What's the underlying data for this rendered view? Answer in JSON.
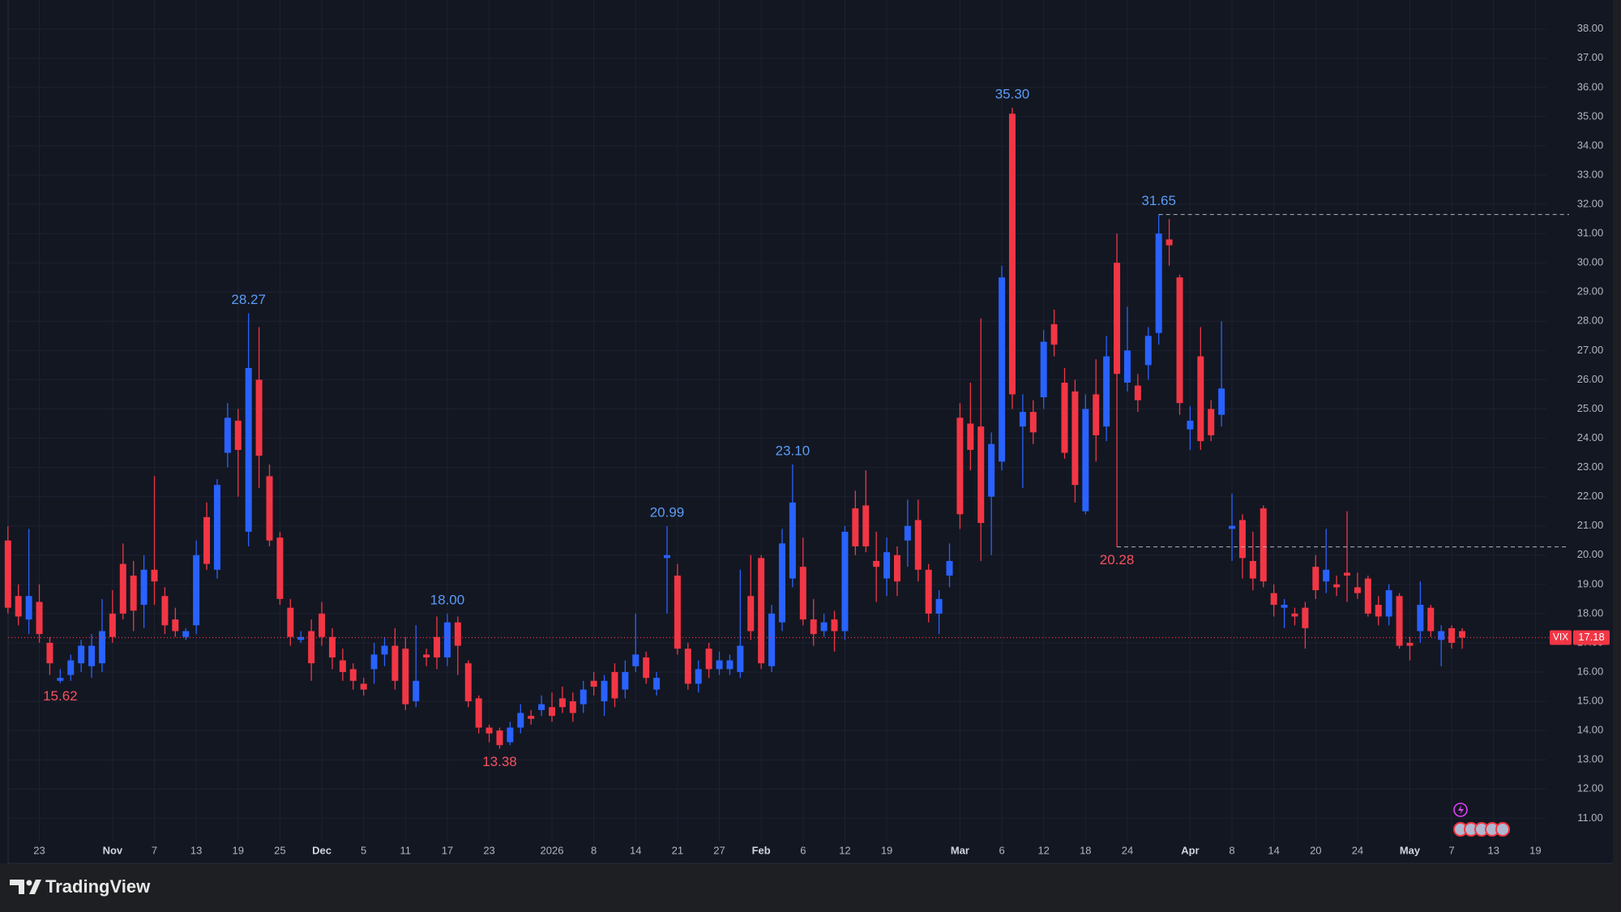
{
  "chart_data": {
    "type": "candlestick",
    "symbol": "VIX",
    "price_label": "17.18",
    "up_color": "#2962ff",
    "down_color": "#f23645",
    "high_label_color": "#5b9cf6",
    "low_label_color": "#f7525f",
    "grid": true,
    "ylim": [
      10.26,
      38.99
    ],
    "yticks": [
      {
        "value": 11,
        "label": "11.00"
      },
      {
        "value": 12,
        "label": "12.00"
      },
      {
        "value": 13,
        "label": "13.00"
      },
      {
        "value": 14,
        "label": "14.00"
      },
      {
        "value": 15,
        "label": "15.00"
      },
      {
        "value": 16,
        "label": "16.00"
      },
      {
        "value": 17,
        "label": "17.00"
      },
      {
        "value": 18,
        "label": "18.00"
      },
      {
        "value": 19,
        "label": "19.00"
      },
      {
        "value": 20,
        "label": "20.00"
      },
      {
        "value": 21,
        "label": "21.00"
      },
      {
        "value": 22,
        "label": "22.00"
      },
      {
        "value": 23,
        "label": "23.00"
      },
      {
        "value": 24,
        "label": "24.00"
      },
      {
        "value": 25,
        "label": "25.00"
      },
      {
        "value": 26,
        "label": "26.00"
      },
      {
        "value": 27,
        "label": "27.00"
      },
      {
        "value": 28,
        "label": "28.00"
      },
      {
        "value": 29,
        "label": "29.00"
      },
      {
        "value": 30,
        "label": "30.00"
      },
      {
        "value": 31,
        "label": "31.00"
      },
      {
        "value": 32,
        "label": "32.00"
      },
      {
        "value": 33,
        "label": "33.00"
      },
      {
        "value": 34,
        "label": "34.00"
      },
      {
        "value": 35,
        "label": "35.00"
      },
      {
        "value": 36,
        "label": "36.00"
      },
      {
        "value": 37,
        "label": "37.00"
      },
      {
        "value": 38,
        "label": "38.00"
      }
    ],
    "categories": [
      null,
      null,
      null,
      "23",
      null,
      null,
      null,
      null,
      null,
      null,
      "Nov",
      null,
      null,
      null,
      "7",
      null,
      null,
      null,
      "13",
      null,
      null,
      null,
      "19",
      null,
      null,
      null,
      "25",
      null,
      null,
      null,
      "Dec",
      null,
      null,
      null,
      "5",
      null,
      null,
      null,
      "11",
      null,
      null,
      null,
      "17",
      null,
      null,
      null,
      "23",
      null,
      null,
      null,
      null,
      null,
      "2026",
      null,
      null,
      null,
      "8",
      null,
      null,
      null,
      "14",
      null,
      null,
      null,
      "21",
      null,
      null,
      null,
      "27",
      null,
      null,
      null,
      "Feb",
      null,
      null,
      null,
      "6",
      null,
      null,
      null,
      "12",
      null,
      null,
      null,
      "19",
      null,
      null,
      null,
      null,
      null,
      null,
      "Mar",
      null,
      null,
      null,
      "6",
      null,
      null,
      null,
      "12",
      null,
      null,
      null,
      "18",
      null,
      null,
      null,
      "24",
      null,
      null,
      null,
      null,
      null,
      "Apr",
      null,
      null,
      null,
      "8",
      null,
      null,
      null,
      "14",
      null,
      null,
      null,
      "20",
      null,
      null,
      null,
      "24",
      null,
      null,
      null,
      null,
      "May",
      null,
      null,
      null,
      "7",
      null,
      null,
      null,
      "13",
      null,
      null,
      null,
      "19",
      null
    ],
    "open": [
      20.5,
      18.6,
      17.8,
      18.4,
      17.0,
      15.7,
      15.9,
      16.3,
      16.2,
      16.3,
      18.0,
      19.7,
      19.3,
      18.3,
      19.5,
      18.6,
      17.8,
      17.2,
      17.6,
      21.3,
      19.5,
      23.5,
      24.6,
      20.8,
      26.0,
      22.7,
      20.6,
      18.2,
      17.1,
      17.4,
      18.0,
      17.2,
      16.4,
      16.1,
      15.6,
      16.1,
      16.6,
      16.9,
      16.8,
      15.0,
      16.6,
      17.2,
      16.5,
      17.7,
      16.3,
      15.1,
      14.1,
      14.0,
      13.6,
      14.1,
      14.5,
      14.7,
      14.8,
      15.1,
      15.0,
      14.9,
      15.7,
      15.0,
      16.0,
      15.4,
      16.2,
      16.5,
      15.4,
      19.9,
      19.3,
      16.8,
      15.6,
      16.8,
      16.1,
      16.1,
      16.0,
      18.6,
      19.9,
      16.2,
      17.7,
      19.2,
      19.6,
      17.8,
      17.4,
      17.8,
      17.4,
      21.6,
      21.7,
      19.8,
      19.2,
      20.0,
      20.5,
      21.2,
      19.5,
      18.0,
      19.3,
      24.7,
      24.5,
      24.4,
      22.0,
      23.2,
      35.1,
      24.4,
      24.9,
      25.4,
      27.9,
      25.9,
      25.6,
      21.5,
      25.5,
      24.4,
      30.0,
      25.9,
      25.8,
      26.5,
      27.6,
      30.8,
      29.5,
      24.3,
      26.8,
      25.0,
      24.8,
      20.9,
      21.2,
      19.8,
      21.6,
      18.7,
      18.2,
      18.0,
      18.2,
      19.6,
      19.1,
      19.0,
      19.4,
      18.9,
      19.2,
      18.3,
      17.9,
      18.6,
      17.0,
      17.4,
      18.2,
      17.1,
      17.5,
      17.4,
      null,
      null,
      null,
      null,
      null,
      null,
      null,
      null
    ],
    "high": [
      21.0,
      19.0,
      20.9,
      19.0,
      17.2,
      16.1,
      16.6,
      17.1,
      17.3,
      18.5,
      18.8,
      20.4,
      19.8,
      20.0,
      22.7,
      18.9,
      18.2,
      17.5,
      20.5,
      21.8,
      22.6,
      25.2,
      25.0,
      28.27,
      27.8,
      23.1,
      20.8,
      18.5,
      17.4,
      17.8,
      18.4,
      17.5,
      16.8,
      16.3,
      15.8,
      17.0,
      17.2,
      17.5,
      17.2,
      17.6,
      16.8,
      17.9,
      18.0,
      17.9,
      16.4,
      15.2,
      14.2,
      14.1,
      14.3,
      14.9,
      14.7,
      15.2,
      15.3,
      15.5,
      15.3,
      15.7,
      16.0,
      15.9,
      16.3,
      16.4,
      18.0,
      16.7,
      16.0,
      20.99,
      19.7,
      17.0,
      16.4,
      17.0,
      16.7,
      16.6,
      19.5,
      20.0,
      20.0,
      18.3,
      20.9,
      23.1,
      20.6,
      18.5,
      18.0,
      18.1,
      21.0,
      22.2,
      22.9,
      20.8,
      20.6,
      20.3,
      21.9,
      21.9,
      19.7,
      18.8,
      20.4,
      25.2,
      25.9,
      28.1,
      24.2,
      29.9,
      35.3,
      25.5,
      25.3,
      27.7,
      28.4,
      26.4,
      26.0,
      25.5,
      26.7,
      27.5,
      31.0,
      28.5,
      26.2,
      27.8,
      31.65,
      31.5,
      29.6,
      25.1,
      27.8,
      25.3,
      28.0,
      22.1,
      21.4,
      20.8,
      21.7,
      19.0,
      18.5,
      18.2,
      18.4,
      20.0,
      20.9,
      19.3,
      21.5,
      19.4,
      19.3,
      18.6,
      19.0,
      18.7,
      17.2,
      19.1,
      18.3,
      17.6,
      17.6,
      17.5,
      null,
      null,
      null,
      null,
      null,
      null,
      null,
      null
    ],
    "low": [
      18.0,
      17.6,
      17.3,
      17.0,
      15.9,
      15.62,
      15.7,
      16.0,
      15.8,
      16.0,
      17.0,
      17.8,
      17.4,
      17.5,
      18.3,
      17.3,
      17.2,
      17.1,
      17.3,
      19.5,
      19.2,
      23.0,
      22.0,
      20.3,
      22.3,
      20.3,
      18.3,
      16.9,
      17.0,
      15.7,
      16.9,
      16.1,
      15.7,
      15.4,
      15.2,
      15.6,
      16.2,
      15.4,
      14.7,
      14.8,
      16.2,
      16.1,
      16.2,
      15.9,
      14.8,
      13.9,
      13.6,
      13.38,
      13.5,
      13.9,
      14.2,
      14.5,
      14.3,
      14.6,
      14.3,
      14.6,
      15.2,
      14.5,
      14.8,
      15.1,
      16.0,
      15.6,
      15.2,
      18.0,
      16.6,
      15.4,
      15.3,
      15.8,
      15.9,
      15.9,
      15.8,
      17.1,
      16.1,
      16.0,
      17.4,
      18.9,
      17.6,
      16.9,
      17.2,
      16.7,
      17.1,
      20.0,
      20.1,
      18.4,
      18.6,
      18.6,
      19.6,
      19.1,
      17.7,
      17.3,
      18.9,
      20.9,
      22.9,
      19.8,
      20.0,
      22.9,
      25.0,
      22.3,
      23.8,
      25.0,
      26.8,
      23.3,
      21.8,
      21.4,
      23.2,
      23.9,
      20.28,
      25.6,
      24.9,
      26.0,
      27.2,
      29.9,
      24.8,
      23.6,
      23.6,
      23.9,
      24.4,
      19.8,
      19.2,
      18.8,
      18.9,
      17.9,
      17.5,
      17.6,
      16.8,
      18.5,
      18.7,
      18.6,
      18.4,
      18.5,
      17.9,
      17.6,
      17.6,
      16.8,
      16.4,
      17.0,
      17.2,
      16.2,
      16.8,
      16.8,
      null,
      null,
      null,
      null,
      null,
      null,
      null,
      null
    ],
    "close": [
      18.2,
      17.9,
      18.6,
      17.3,
      16.3,
      15.8,
      16.4,
      16.9,
      16.9,
      17.4,
      17.2,
      18.0,
      18.1,
      19.5,
      19.1,
      17.6,
      17.4,
      17.4,
      20.0,
      19.7,
      22.4,
      24.7,
      23.6,
      26.4,
      23.4,
      20.5,
      18.5,
      17.2,
      17.2,
      16.3,
      17.2,
      16.5,
      16.0,
      15.7,
      15.4,
      16.6,
      16.9,
      15.7,
      14.9,
      15.7,
      16.5,
      16.5,
      17.7,
      16.9,
      15.0,
      14.1,
      13.9,
      13.5,
      14.1,
      14.6,
      14.4,
      14.9,
      14.5,
      14.8,
      14.6,
      15.4,
      15.5,
      15.7,
      15.1,
      16.0,
      16.6,
      15.8,
      15.8,
      20.0,
      16.8,
      15.6,
      16.1,
      16.1,
      16.4,
      16.4,
      16.9,
      17.4,
      16.3,
      18.0,
      20.4,
      21.8,
      17.8,
      17.3,
      17.7,
      17.4,
      20.8,
      20.3,
      20.3,
      19.6,
      20.1,
      19.1,
      21.0,
      19.5,
      18.0,
      18.5,
      19.8,
      21.4,
      23.6,
      21.1,
      23.8,
      29.5,
      25.5,
      24.9,
      24.2,
      27.3,
      27.2,
      23.5,
      22.4,
      25.0,
      24.1,
      26.8,
      26.2,
      27.0,
      25.3,
      27.5,
      31.0,
      30.6,
      25.2,
      24.6,
      23.9,
      24.1,
      25.7,
      21.0,
      19.9,
      19.2,
      19.1,
      18.3,
      18.3,
      17.9,
      17.5,
      18.8,
      19.5,
      18.9,
      19.3,
      18.7,
      18.0,
      17.9,
      18.8,
      16.9,
      16.9,
      18.3,
      17.4,
      17.4,
      17.0,
      17.18,
      null,
      null,
      null,
      null,
      null,
      null,
      null,
      null
    ],
    "high_labels": [
      null,
      null,
      null,
      null,
      null,
      null,
      null,
      null,
      null,
      null,
      null,
      null,
      null,
      null,
      null,
      null,
      null,
      null,
      null,
      null,
      null,
      null,
      null,
      "28.27",
      null,
      null,
      null,
      null,
      null,
      null,
      null,
      null,
      null,
      null,
      null,
      null,
      null,
      null,
      null,
      null,
      null,
      null,
      "18.00",
      null,
      null,
      null,
      null,
      null,
      null,
      null,
      null,
      null,
      null,
      null,
      null,
      null,
      null,
      null,
      null,
      null,
      null,
      null,
      null,
      "20.99",
      null,
      null,
      null,
      null,
      null,
      null,
      null,
      null,
      null,
      null,
      null,
      "23.10",
      null,
      null,
      null,
      null,
      null,
      null,
      null,
      null,
      null,
      null,
      null,
      null,
      null,
      null,
      null,
      null,
      null,
      null,
      null,
      null,
      "35.30",
      null,
      null,
      null,
      null,
      null,
      null,
      null,
      null,
      null,
      null,
      null,
      null,
      null,
      "31.65",
      null,
      null,
      null,
      null,
      null,
      null,
      null,
      null,
      null,
      null,
      null,
      null,
      null,
      null,
      null,
      null,
      null,
      null,
      null,
      null,
      null,
      null,
      null,
      null,
      null,
      null,
      null,
      null,
      null,
      null,
      null,
      null,
      null,
      null,
      null,
      null,
      null
    ],
    "low_labels": [
      null,
      null,
      null,
      null,
      null,
      "15.62",
      null,
      null,
      null,
      null,
      null,
      null,
      null,
      null,
      null,
      null,
      null,
      null,
      null,
      null,
      null,
      null,
      null,
      null,
      null,
      null,
      null,
      null,
      null,
      null,
      null,
      null,
      null,
      null,
      null,
      null,
      null,
      null,
      null,
      null,
      null,
      null,
      null,
      null,
      null,
      null,
      null,
      "13.38",
      null,
      null,
      null,
      null,
      null,
      null,
      null,
      null,
      null,
      null,
      null,
      null,
      null,
      null,
      null,
      null,
      null,
      null,
      null,
      null,
      null,
      null,
      null,
      null,
      null,
      null,
      null,
      null,
      null,
      null,
      null,
      null,
      null,
      null,
      null,
      null,
      null,
      null,
      null,
      null,
      null,
      null,
      null,
      null,
      null,
      null,
      null,
      null,
      null,
      null,
      null,
      null,
      null,
      null,
      null,
      null,
      null,
      null,
      "20.28",
      null,
      null,
      null,
      null,
      null,
      null,
      null,
      null,
      null,
      null,
      null,
      null,
      null,
      null,
      null,
      null,
      null,
      null,
      null,
      null,
      null,
      null,
      null,
      null,
      null,
      null,
      null,
      null,
      null,
      null,
      null,
      null,
      null,
      null,
      null,
      null,
      null,
      null,
      null,
      null,
      null
    ]
  },
  "footer": {
    "brand": "TradingView"
  }
}
